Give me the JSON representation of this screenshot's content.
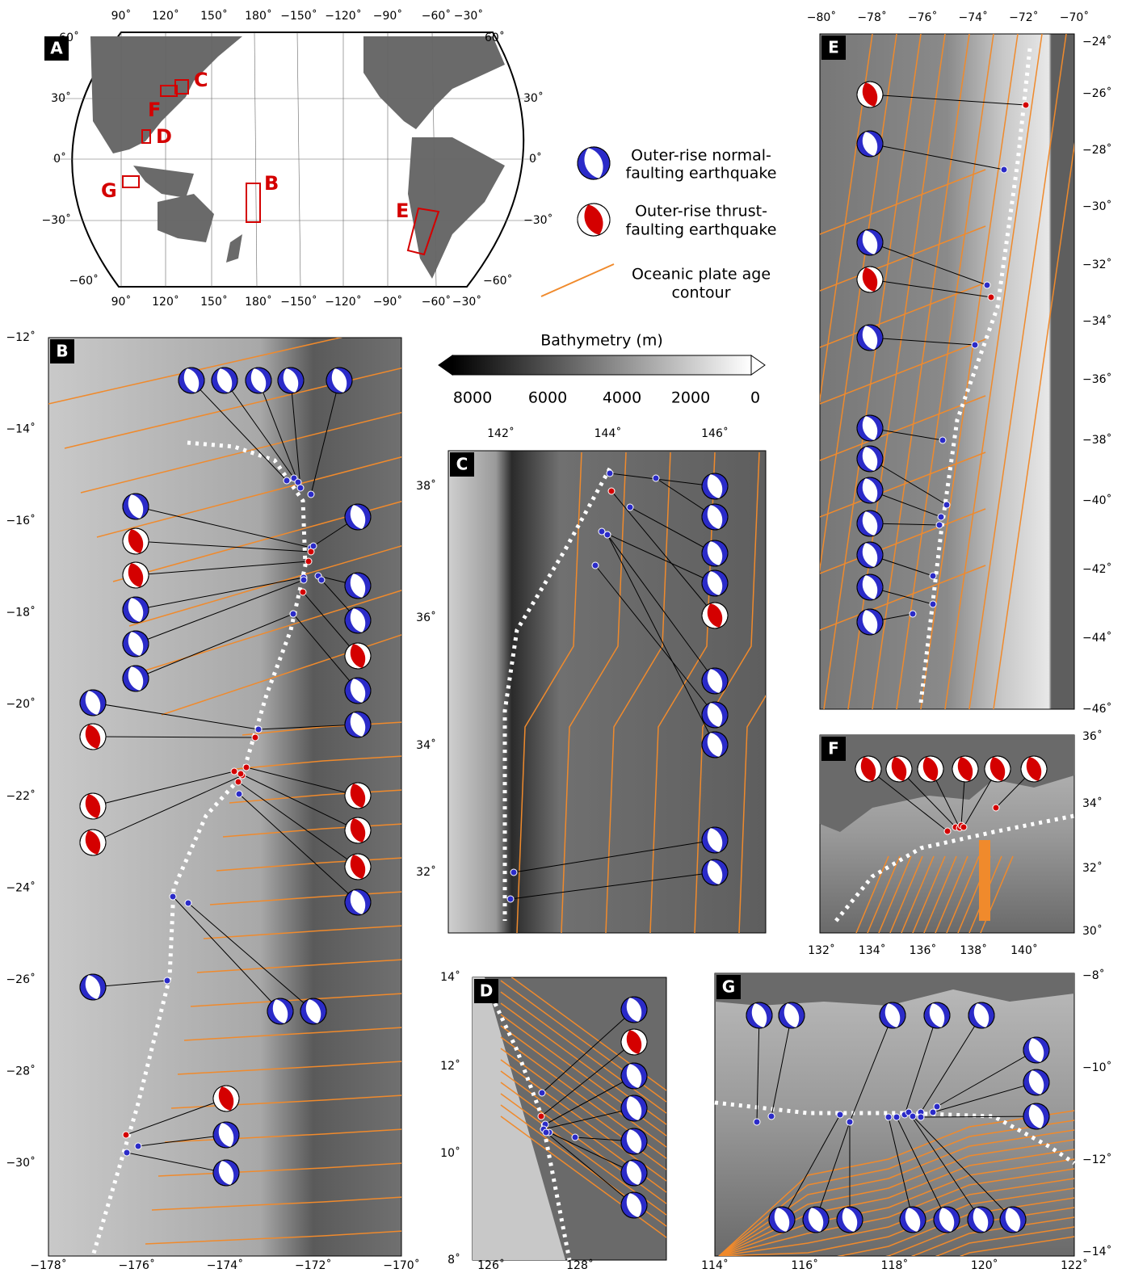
{
  "panel_a": {
    "letter": "A",
    "top_ticks": [
      "90˚",
      "120˚",
      "150˚",
      "180˚",
      "−150˚",
      "−120˚",
      "−90˚",
      "−60˚",
      "−30˚"
    ],
    "bottom_ticks": [
      "90˚",
      "120˚",
      "150˚",
      "180˚",
      "−150˚",
      "−120˚",
      "−90˚",
      "−60˚",
      "−30˚"
    ],
    "left_ticks": [
      "60˚",
      "30˚",
      "0˚",
      "−30˚",
      "−60˚"
    ],
    "right_ticks": [
      "60˚",
      "30˚",
      "0˚",
      "−30˚",
      "−60˚"
    ],
    "regions": [
      "C",
      "F",
      "D",
      "G",
      "B",
      "E"
    ]
  },
  "legend": {
    "items": [
      {
        "lines": [
          "Outer-rise normal-",
          "faulting earthquake"
        ]
      },
      {
        "lines": [
          "Outer-rise thrust-",
          "faulting earthquake"
        ]
      },
      {
        "lines": [
          "Oceanic plate age",
          "contour"
        ]
      }
    ]
  },
  "colorbar": {
    "title": "Bathymetry (m)",
    "labels": [
      "8000",
      "6000",
      "4000",
      "2000",
      "0"
    ]
  },
  "panel_b": {
    "letter": "B",
    "bottom_ticks": [
      "−178˚",
      "−176˚",
      "−174˚",
      "−172˚",
      "−170˚"
    ],
    "left_ticks": [
      "−12˚",
      "−14˚",
      "−16˚",
      "−18˚",
      "−20˚",
      "−22˚",
      "−24˚",
      "−26˚",
      "−28˚",
      "−30˚"
    ]
  },
  "panel_c": {
    "letter": "C",
    "top_ticks": [
      "142˚",
      "144˚",
      "146˚"
    ],
    "left_ticks": [
      "38˚",
      "36˚",
      "34˚",
      "32˚"
    ]
  },
  "panel_d": {
    "letter": "D",
    "left_ticks": [
      "14˚",
      "12˚",
      "10˚",
      "8˚"
    ],
    "bottom_ticks": [
      "126˚",
      "128˚"
    ]
  },
  "panel_e": {
    "letter": "E",
    "top_ticks": [
      "−80˚",
      "−78˚",
      "−76˚",
      "−74˚",
      "−72˚",
      "−70˚"
    ],
    "right_ticks": [
      "−24˚",
      "−26˚",
      "−28˚",
      "−30˚",
      "−32˚",
      "−34˚",
      "−36˚",
      "−38˚",
      "−40˚",
      "−42˚",
      "−44˚",
      "−46˚"
    ]
  },
  "panel_f": {
    "letter": "F",
    "right_ticks": [
      "36˚",
      "34˚",
      "32˚",
      "30˚"
    ],
    "bottom_ticks": [
      "132˚",
      "134˚",
      "136˚",
      "138˚",
      "140˚"
    ]
  },
  "panel_g": {
    "letter": "G",
    "right_ticks": [
      "−8˚",
      "−10˚",
      "−12˚",
      "−14˚"
    ],
    "bottom_ticks": [
      "114˚",
      "116˚",
      "118˚",
      "120˚",
      "122˚"
    ]
  }
}
